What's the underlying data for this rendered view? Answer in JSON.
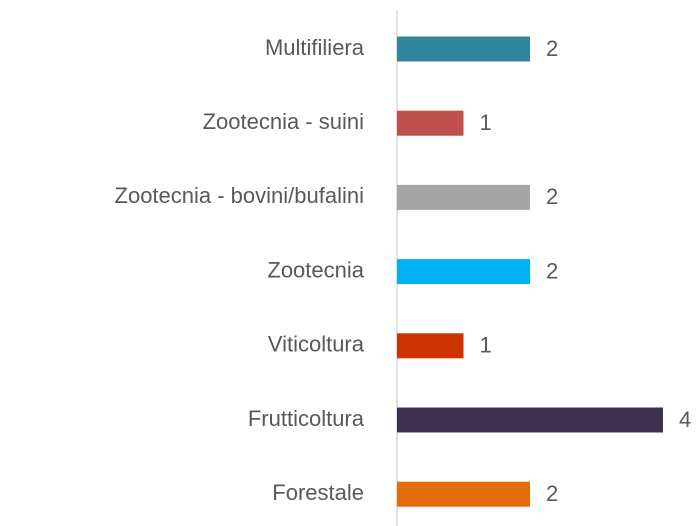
{
  "chart_data": {
    "type": "bar",
    "orientation": "horizontal",
    "categories": [
      "Multifiliera",
      "Zootecnia - suini",
      "Zootecnia - bovini/bufalini",
      "Zootecnia",
      "Viticoltura",
      "Frutticoltura",
      "Forestale"
    ],
    "values": [
      2,
      1,
      2,
      2,
      1,
      4,
      2
    ],
    "colors": [
      "#31859c",
      "#c0504d",
      "#a5a5a5",
      "#00b0f0",
      "#cc3300",
      "#3c3151",
      "#e46c0a"
    ],
    "data_labels": true
  }
}
